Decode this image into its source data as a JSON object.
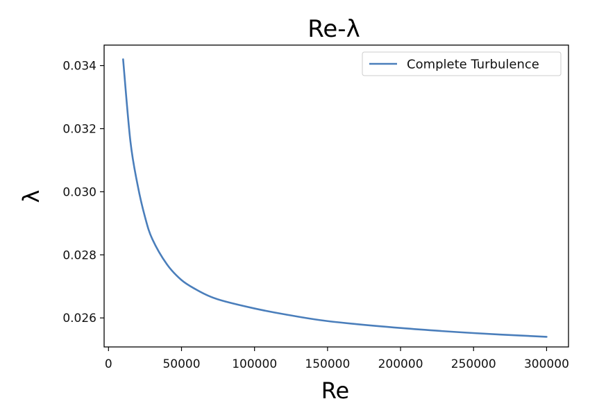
{
  "chart_data": {
    "type": "line",
    "title": "Re-λ",
    "xlabel": "Re",
    "ylabel": "λ",
    "xlim": [
      -3000,
      315000
    ],
    "ylim": [
      0.02508,
      0.03465
    ],
    "x_ticks": [
      0,
      50000,
      100000,
      150000,
      200000,
      250000,
      300000
    ],
    "y_ticks": [
      0.026,
      0.028,
      0.03,
      0.032,
      0.034
    ],
    "y_tick_labels": [
      "0.026",
      "0.028",
      "0.030",
      "0.032",
      "0.034"
    ],
    "grid": false,
    "legend_position": "upper-right",
    "series": [
      {
        "name": "Complete Turbulence",
        "color": "#4a7ebb",
        "x": [
          10000,
          15000,
          20000,
          25000,
          30000,
          40000,
          50000,
          60000,
          70000,
          80000,
          100000,
          120000,
          150000,
          200000,
          250000,
          300000
        ],
        "y": [
          0.0342,
          0.0316,
          0.0302,
          0.0292,
          0.0285,
          0.0277,
          0.0272,
          0.0269,
          0.02667,
          0.02652,
          0.0263,
          0.02612,
          0.0259,
          0.02568,
          0.02552,
          0.0254
        ]
      }
    ]
  }
}
